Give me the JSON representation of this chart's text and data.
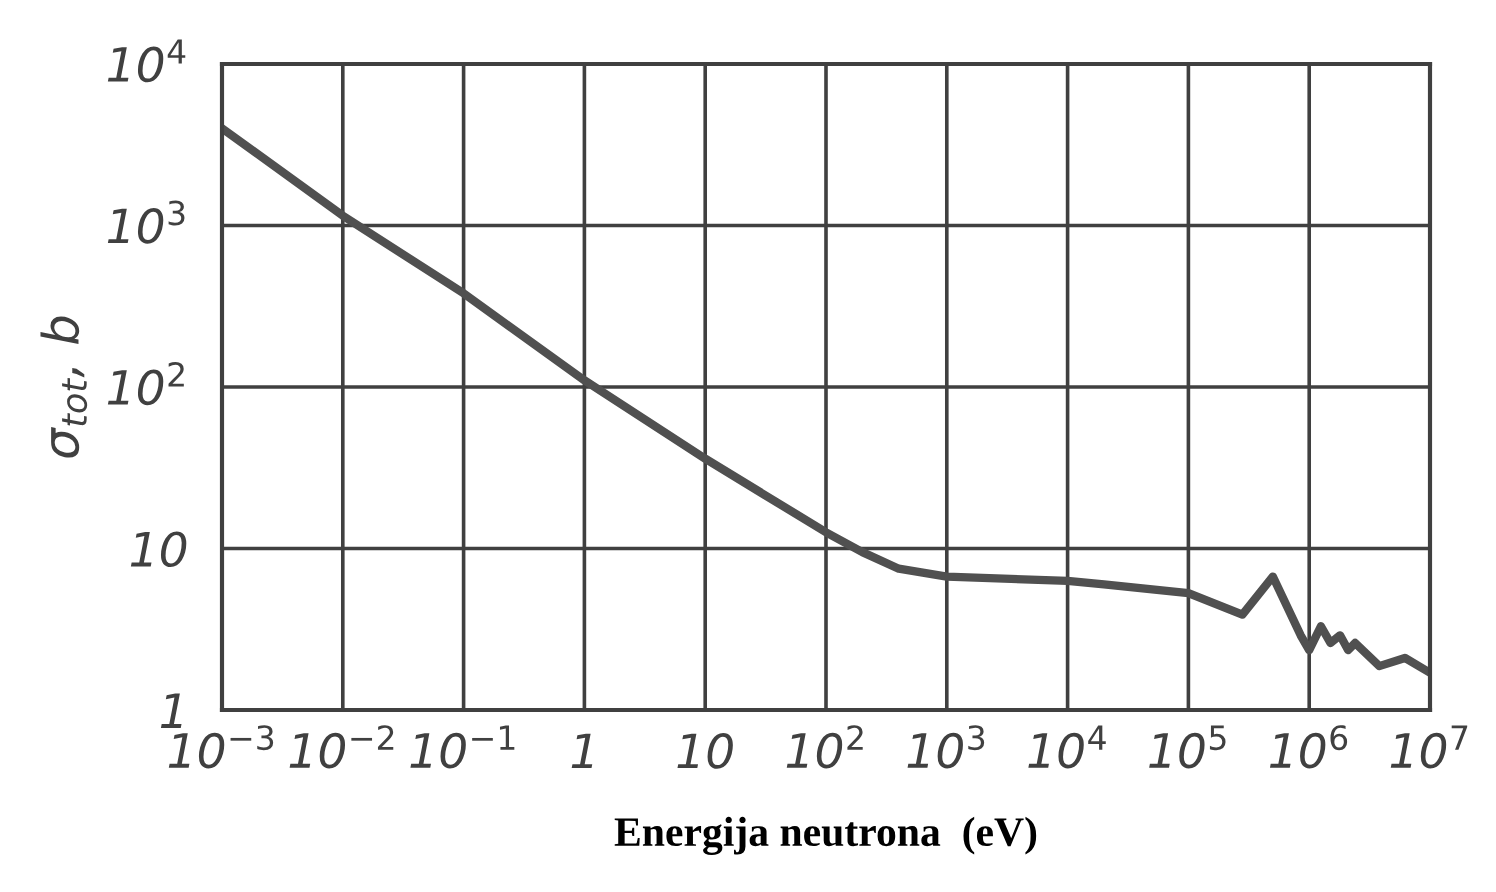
{
  "chart_data": {
    "type": "line",
    "xlabel": "Energija neutrona  (eV)",
    "ylabel": "σ$_{tot}$, b",
    "log": "xy",
    "grid": true,
    "marker": "none",
    "line_style": "solid",
    "xlim": [
      0.001,
      10000000
    ],
    "ylim": [
      1,
      10000
    ],
    "xticks": [
      {
        "value": 0.001,
        "label": "10$^{−3}$"
      },
      {
        "value": 0.01,
        "label": "10$^{−2}$"
      },
      {
        "value": 0.1,
        "label": "10$^{−1}$"
      },
      1,
      10,
      {
        "value": 100,
        "label": "10$^{2}$"
      },
      {
        "value": 1000,
        "label": "10$^{3}$"
      },
      {
        "value": 10000,
        "label": "10$^{4}$"
      },
      {
        "value": 100000,
        "label": "10$^{5}$"
      },
      {
        "value": 1000000,
        "label": "10$^{6}$"
      },
      {
        "value": 10000000,
        "label": "10$^{7}$"
      }
    ],
    "yticks": [
      1,
      10,
      {
        "value": 100,
        "label": "10$^{2}$"
      },
      {
        "value": 1000,
        "label": "10$^{3}$"
      },
      {
        "value": 10000,
        "label": "10$^{4}$"
      }
    ],
    "series": [
      {
        "color": "#505050",
        "x": [
          0.001,
          0.01,
          0.1,
          1,
          10,
          100,
          200,
          400,
          1000,
          10000,
          20000,
          100000,
          280000,
          500000,
          850000,
          1000000,
          1250000,
          1500000,
          1800000,
          2100000,
          2400000,
          3800000,
          6200000,
          10000000
        ],
        "values": [
          4000,
          1150,
          380,
          110,
          36,
          12.6,
          9.5,
          7.5,
          6.7,
          6.3,
          6.0,
          5.3,
          3.9,
          6.7,
          2.9,
          2.35,
          3.3,
          2.6,
          2.9,
          2.35,
          2.6,
          1.87,
          2.1,
          1.7
        ]
      }
    ]
  }
}
